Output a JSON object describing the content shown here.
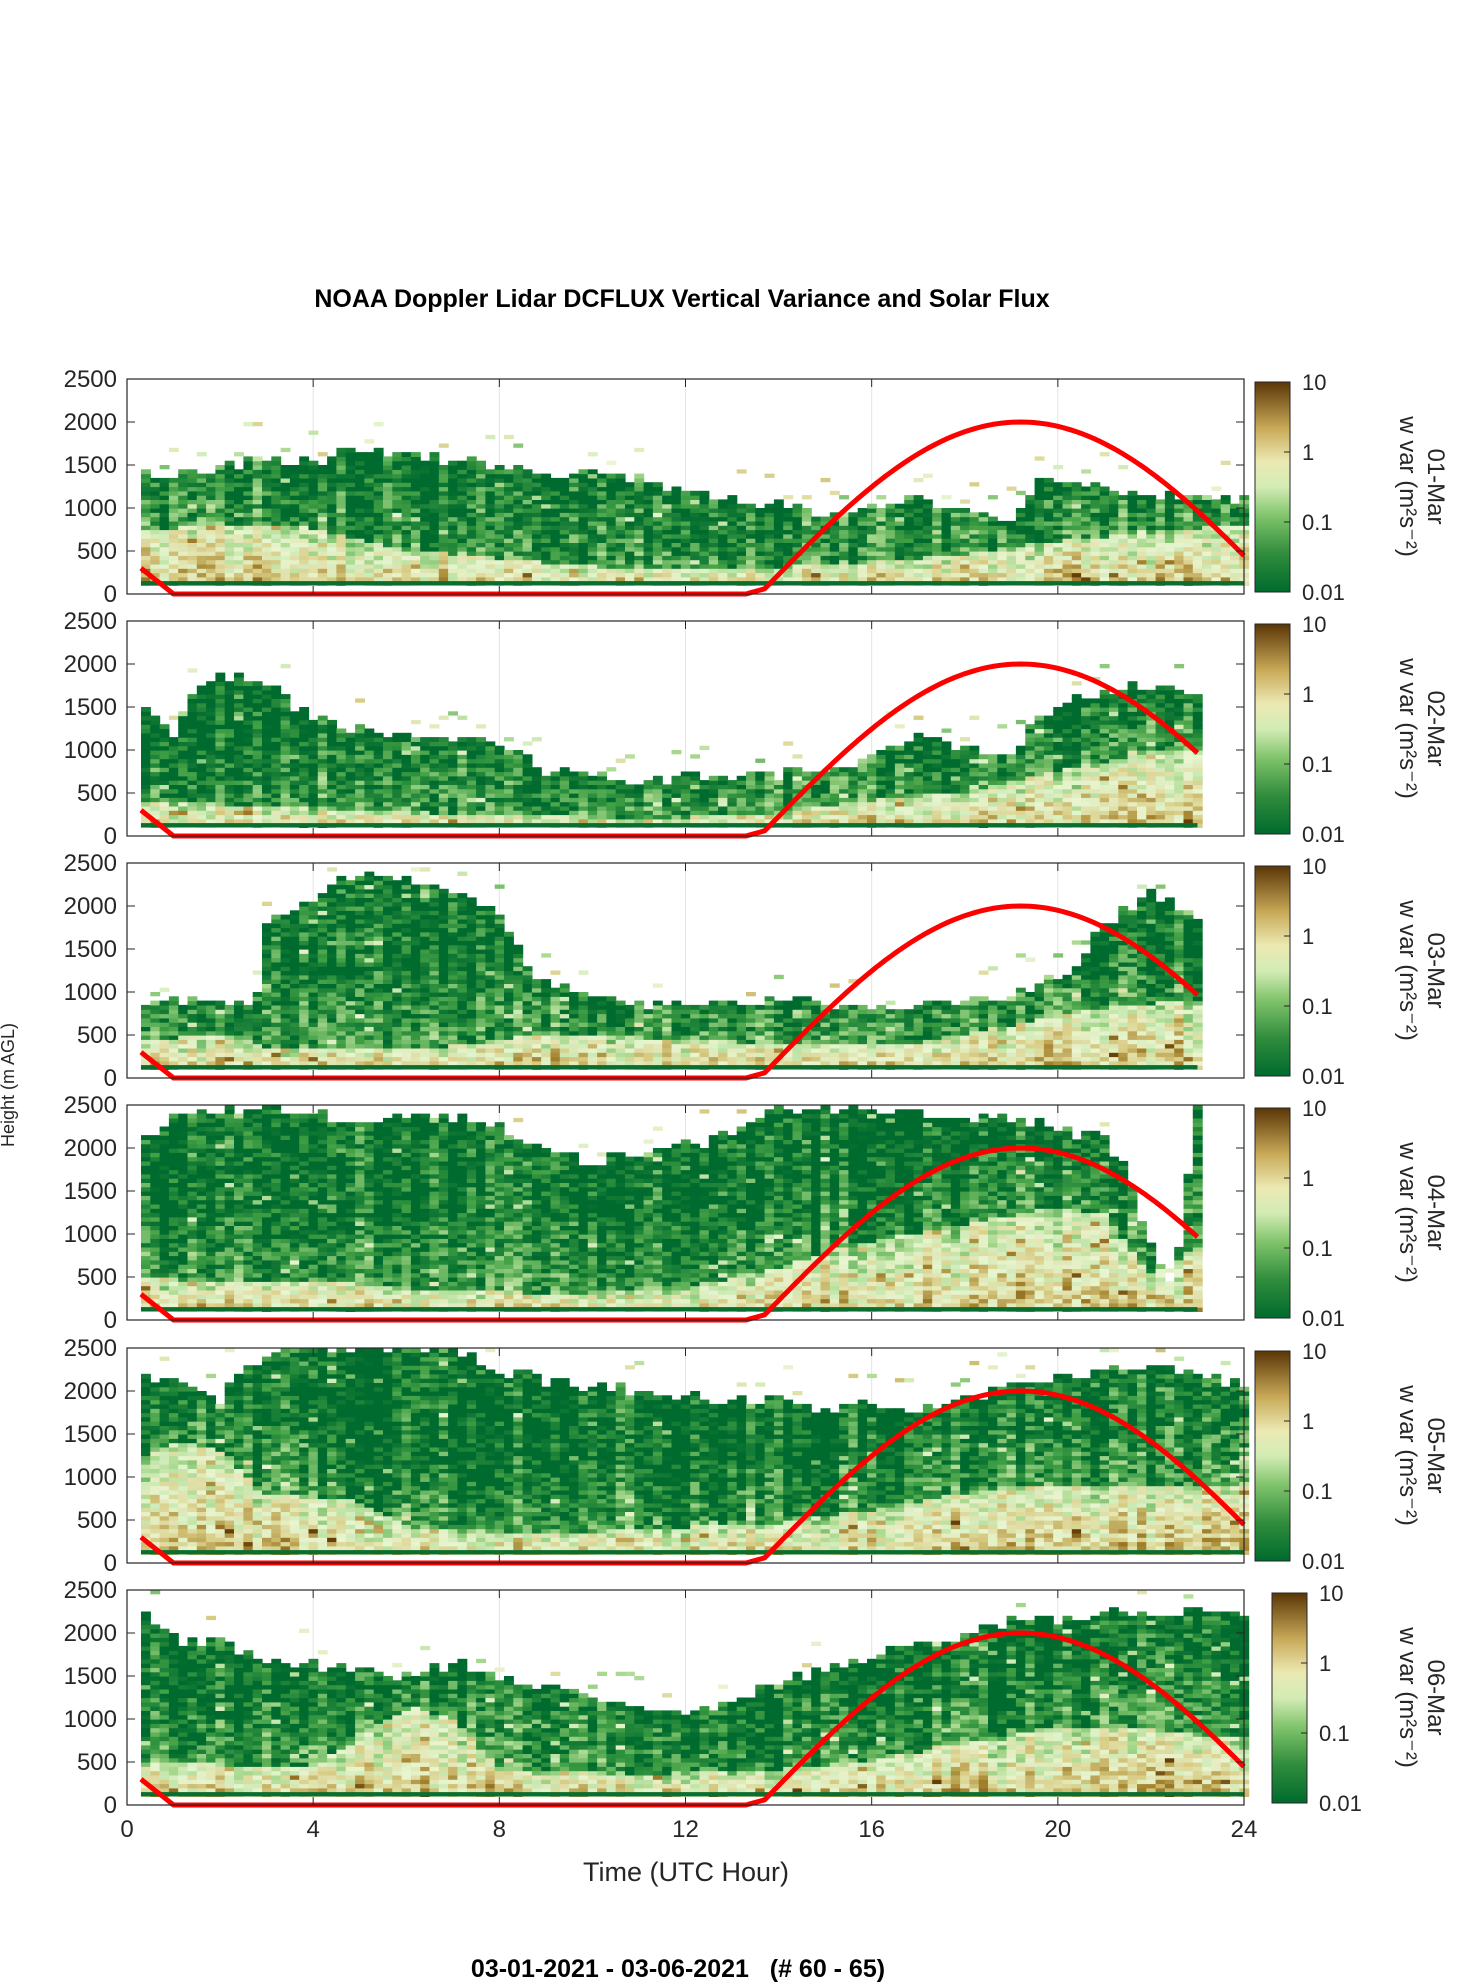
{
  "figure": {
    "title": "NOAA Doppler Lidar DCFLUX Vertical Variance and Solar Flux",
    "footer": "03-01-2021 - 03-06-2021   (# 60 - 65)",
    "xlabel": "Time (UTC Hour)",
    "ylabel": "Height (m AGL)"
  },
  "chart_data": {
    "type": "heatmap",
    "title": "NOAA Doppler Lidar DCFLUX Vertical Variance and Solar Flux",
    "xlabel": "Time (UTC Hour)",
    "ylabel": "Height (m AGL)",
    "xlim": [
      0,
      24
    ],
    "ylim": [
      0,
      2500
    ],
    "x_ticks": [
      "0",
      "4",
      "8",
      "12",
      "16",
      "20",
      "24"
    ],
    "y_ticks": [
      "0",
      "500",
      "1000",
      "1500",
      "2000",
      "2500"
    ],
    "grid": "vertical",
    "colorbar": {
      "label": "w var (m²s⁻²)",
      "scale": "log",
      "range": [
        0.01,
        10
      ],
      "ticks": [
        "0.01",
        "0.1",
        "1",
        "10"
      ],
      "colors": [
        "#006b2e",
        "#41a045",
        "#a9d98f",
        "#e8f5d0",
        "#d9cd86",
        "#a4832f",
        "#663f08"
      ]
    },
    "overlay": {
      "name": "Solar flux curve",
      "color": "#ff0000",
      "points": [
        [
          0.3,
          300
        ],
        [
          1,
          0
        ],
        [
          13.3,
          0
        ],
        [
          13.7,
          60
        ],
        [
          16,
          1350
        ],
        [
          19.2,
          2000
        ],
        [
          22,
          1550
        ],
        [
          24,
          520
        ]
      ]
    },
    "panels": [
      {
        "date": "01-Mar",
        "top_height": [
          [
            0.3,
            1420
          ],
          [
            1,
            1360
          ],
          [
            2,
            1440
          ],
          [
            3,
            1550
          ],
          [
            4,
            1500
          ],
          [
            4.5,
            1640
          ],
          [
            6,
            1600
          ],
          [
            7,
            1550
          ],
          [
            8,
            1500
          ],
          [
            9,
            1380
          ],
          [
            10,
            1360
          ],
          [
            11,
            1300
          ],
          [
            12,
            1200
          ],
          [
            13,
            1080
          ],
          [
            14,
            1000
          ],
          [
            15,
            920
          ],
          [
            16,
            980
          ],
          [
            17,
            1100
          ],
          [
            18,
            900
          ],
          [
            19,
            860
          ],
          [
            19.5,
            1300
          ],
          [
            20.5,
            1250
          ],
          [
            21.5,
            1150
          ],
          [
            23,
            1100
          ],
          [
            24,
            1080
          ]
        ],
        "mixing_height": [
          [
            0.3,
            700
          ],
          [
            2,
            800
          ],
          [
            4,
            750
          ],
          [
            6,
            500
          ],
          [
            8,
            400
          ],
          [
            10,
            300
          ],
          [
            12,
            250
          ],
          [
            14,
            300
          ],
          [
            16,
            350
          ],
          [
            18,
            450
          ],
          [
            20,
            600
          ],
          [
            22,
            700
          ],
          [
            24,
            800
          ]
        ],
        "solar_flux": [
          [
            0.3,
            300
          ],
          [
            1,
            0
          ],
          [
            13.3,
            0
          ],
          [
            13.7,
            60
          ],
          [
            16,
            1350
          ],
          [
            19.2,
            2000
          ],
          [
            22,
            1550
          ],
          [
            24,
            520
          ]
        ]
      },
      {
        "date": "02-Mar",
        "top_height": [
          [
            0.3,
            1500
          ],
          [
            1,
            1150
          ],
          [
            1.5,
            1800
          ],
          [
            2.5,
            1850
          ],
          [
            3,
            1750
          ],
          [
            4,
            1300
          ],
          [
            6,
            1150
          ],
          [
            8,
            1050
          ],
          [
            9,
            750
          ],
          [
            10,
            700
          ],
          [
            11,
            600
          ],
          [
            12,
            650
          ],
          [
            13,
            680
          ],
          [
            14,
            700
          ],
          [
            15,
            800
          ],
          [
            16,
            900
          ],
          [
            17,
            1150
          ],
          [
            18,
            1000
          ],
          [
            19,
            900
          ],
          [
            19.5,
            1350
          ],
          [
            20.5,
            1600
          ],
          [
            21.5,
            1700
          ],
          [
            22,
            1750
          ],
          [
            23,
            1550
          ]
        ],
        "mixing_height": [
          [
            0.3,
            400
          ],
          [
            2,
            350
          ],
          [
            4,
            300
          ],
          [
            6,
            250
          ],
          [
            8,
            250
          ],
          [
            10,
            200
          ],
          [
            12,
            200
          ],
          [
            14,
            250
          ],
          [
            16,
            400
          ],
          [
            18,
            500
          ],
          [
            20,
            750
          ],
          [
            22,
            950
          ],
          [
            23,
            1000
          ]
        ],
        "solar_flux": [
          [
            0.3,
            300
          ],
          [
            1,
            0
          ],
          [
            13.3,
            0
          ],
          [
            13.7,
            60
          ],
          [
            16,
            1350
          ],
          [
            19.2,
            2000
          ],
          [
            22,
            1550
          ],
          [
            23,
            1030
          ]
        ]
      },
      {
        "date": "03-Mar",
        "top_height": [
          [
            0.3,
            800
          ],
          [
            1,
            850
          ],
          [
            2,
            900
          ],
          [
            2.8,
            900
          ],
          [
            3,
            1750
          ],
          [
            4,
            2100
          ],
          [
            5,
            2350
          ],
          [
            6,
            2300
          ],
          [
            7,
            2150
          ],
          [
            8,
            1900
          ],
          [
            8.5,
            1350
          ],
          [
            9,
            1100
          ],
          [
            10,
            900
          ],
          [
            11,
            800
          ],
          [
            12,
            820
          ],
          [
            13,
            850
          ],
          [
            14,
            870
          ],
          [
            15,
            820
          ],
          [
            16,
            800
          ],
          [
            17,
            820
          ],
          [
            18,
            880
          ],
          [
            19,
            900
          ],
          [
            19.5,
            1100
          ],
          [
            20.5,
            1300
          ],
          [
            21,
            1800
          ],
          [
            22,
            2100
          ],
          [
            23,
            1850
          ]
        ],
        "mixing_height": [
          [
            0.3,
            400
          ],
          [
            2,
            500
          ],
          [
            3,
            350
          ],
          [
            5,
            300
          ],
          [
            7,
            350
          ],
          [
            9,
            500
          ],
          [
            11,
            450
          ],
          [
            13,
            400
          ],
          [
            15,
            350
          ],
          [
            17,
            400
          ],
          [
            19,
            600
          ],
          [
            21,
            800
          ],
          [
            23,
            900
          ]
        ],
        "solar_flux": [
          [
            0.3,
            300
          ],
          [
            1,
            0
          ],
          [
            13.3,
            0
          ],
          [
            13.7,
            60
          ],
          [
            16,
            1350
          ],
          [
            19.2,
            2000
          ],
          [
            22,
            1550
          ],
          [
            23,
            1030
          ]
        ]
      },
      {
        "date": "04-Mar",
        "top_height": [
          [
            0.3,
            2000
          ],
          [
            1,
            2400
          ],
          [
            3,
            2450
          ],
          [
            5,
            2300
          ],
          [
            7,
            2350
          ],
          [
            8,
            2200
          ],
          [
            9,
            1950
          ],
          [
            10,
            1800
          ],
          [
            11,
            1950
          ],
          [
            12,
            2000
          ],
          [
            13,
            2150
          ],
          [
            14,
            2450
          ],
          [
            16,
            2400
          ],
          [
            18,
            2350
          ],
          [
            19,
            2300
          ],
          [
            20,
            2200
          ],
          [
            21,
            2100
          ],
          [
            21.5,
            1700
          ],
          [
            22,
            800
          ],
          [
            22.5,
            400
          ],
          [
            23,
            2450
          ]
        ],
        "mixing_height": [
          [
            0.3,
            500
          ],
          [
            2,
            400
          ],
          [
            4,
            450
          ],
          [
            6,
            350
          ],
          [
            8,
            300
          ],
          [
            10,
            300
          ],
          [
            12,
            350
          ],
          [
            14,
            600
          ],
          [
            16,
            900
          ],
          [
            18,
            1100
          ],
          [
            20,
            1300
          ],
          [
            21,
            1200
          ],
          [
            22,
            500
          ],
          [
            23,
            800
          ]
        ],
        "solar_flux": [
          [
            0.3,
            300
          ],
          [
            1,
            0
          ],
          [
            13.3,
            0
          ],
          [
            13.7,
            60
          ],
          [
            16,
            1350
          ],
          [
            19.2,
            2000
          ],
          [
            22,
            1550
          ],
          [
            23,
            1030
          ]
        ]
      },
      {
        "date": "05-Mar",
        "top_height": [
          [
            0.3,
            2100
          ],
          [
            1,
            2150
          ],
          [
            2,
            1900
          ],
          [
            3,
            2450
          ],
          [
            5,
            2500
          ],
          [
            7,
            2500
          ],
          [
            8,
            2200
          ],
          [
            9,
            2100
          ],
          [
            10,
            2050
          ],
          [
            11,
            2000
          ],
          [
            12,
            1950
          ],
          [
            13,
            1850
          ],
          [
            14,
            1850
          ],
          [
            15,
            1750
          ],
          [
            16,
            1800
          ],
          [
            17,
            1700
          ],
          [
            18,
            1900
          ],
          [
            19,
            2050
          ],
          [
            20,
            2150
          ],
          [
            21,
            2200
          ],
          [
            22,
            2250
          ],
          [
            23,
            2200
          ],
          [
            24,
            2050
          ]
        ],
        "mixing_height": [
          [
            0.3,
            1200
          ],
          [
            1,
            1400
          ],
          [
            2,
            1300
          ],
          [
            3,
            800
          ],
          [
            5,
            700
          ],
          [
            6,
            400
          ],
          [
            8,
            350
          ],
          [
            10,
            350
          ],
          [
            12,
            400
          ],
          [
            14,
            450
          ],
          [
            16,
            600
          ],
          [
            18,
            800
          ],
          [
            20,
            900
          ],
          [
            22,
            900
          ],
          [
            24,
            850
          ]
        ],
        "solar_flux": [
          [
            0.3,
            300
          ],
          [
            1,
            0
          ],
          [
            13.3,
            0
          ],
          [
            13.7,
            60
          ],
          [
            16,
            1350
          ],
          [
            19.2,
            2000
          ],
          [
            22,
            1550
          ],
          [
            24,
            520
          ]
        ]
      },
      {
        "date": "06-Mar",
        "top_height": [
          [
            0.3,
            2200
          ],
          [
            1,
            1900
          ],
          [
            2,
            1850
          ],
          [
            3,
            1700
          ],
          [
            4,
            1600
          ],
          [
            5,
            1550
          ],
          [
            6,
            1450
          ],
          [
            7,
            1650
          ],
          [
            8,
            1450
          ],
          [
            9,
            1350
          ],
          [
            10,
            1200
          ],
          [
            11,
            1100
          ],
          [
            12,
            1050
          ],
          [
            13,
            1200
          ],
          [
            14,
            1400
          ],
          [
            15,
            1550
          ],
          [
            16,
            1700
          ],
          [
            17,
            1850
          ],
          [
            18,
            1950
          ],
          [
            19,
            2100
          ],
          [
            20,
            2100
          ],
          [
            21,
            2200
          ],
          [
            22,
            2200
          ],
          [
            23,
            2250
          ],
          [
            24,
            2200
          ]
        ],
        "mixing_height": [
          [
            0.3,
            500
          ],
          [
            2,
            450
          ],
          [
            4,
            400
          ],
          [
            5,
            800
          ],
          [
            6,
            1100
          ],
          [
            7,
            1000
          ],
          [
            8,
            400
          ],
          [
            10,
            350
          ],
          [
            12,
            350
          ],
          [
            14,
            400
          ],
          [
            16,
            500
          ],
          [
            18,
            700
          ],
          [
            20,
            900
          ],
          [
            22,
            850
          ],
          [
            24,
            750
          ]
        ],
        "solar_flux": [
          [
            0.3,
            300
          ],
          [
            1,
            0
          ],
          [
            13.3,
            0
          ],
          [
            13.7,
            60
          ],
          [
            16,
            1350
          ],
          [
            19.2,
            2000
          ],
          [
            22,
            1550
          ],
          [
            24,
            520
          ]
        ]
      }
    ]
  }
}
